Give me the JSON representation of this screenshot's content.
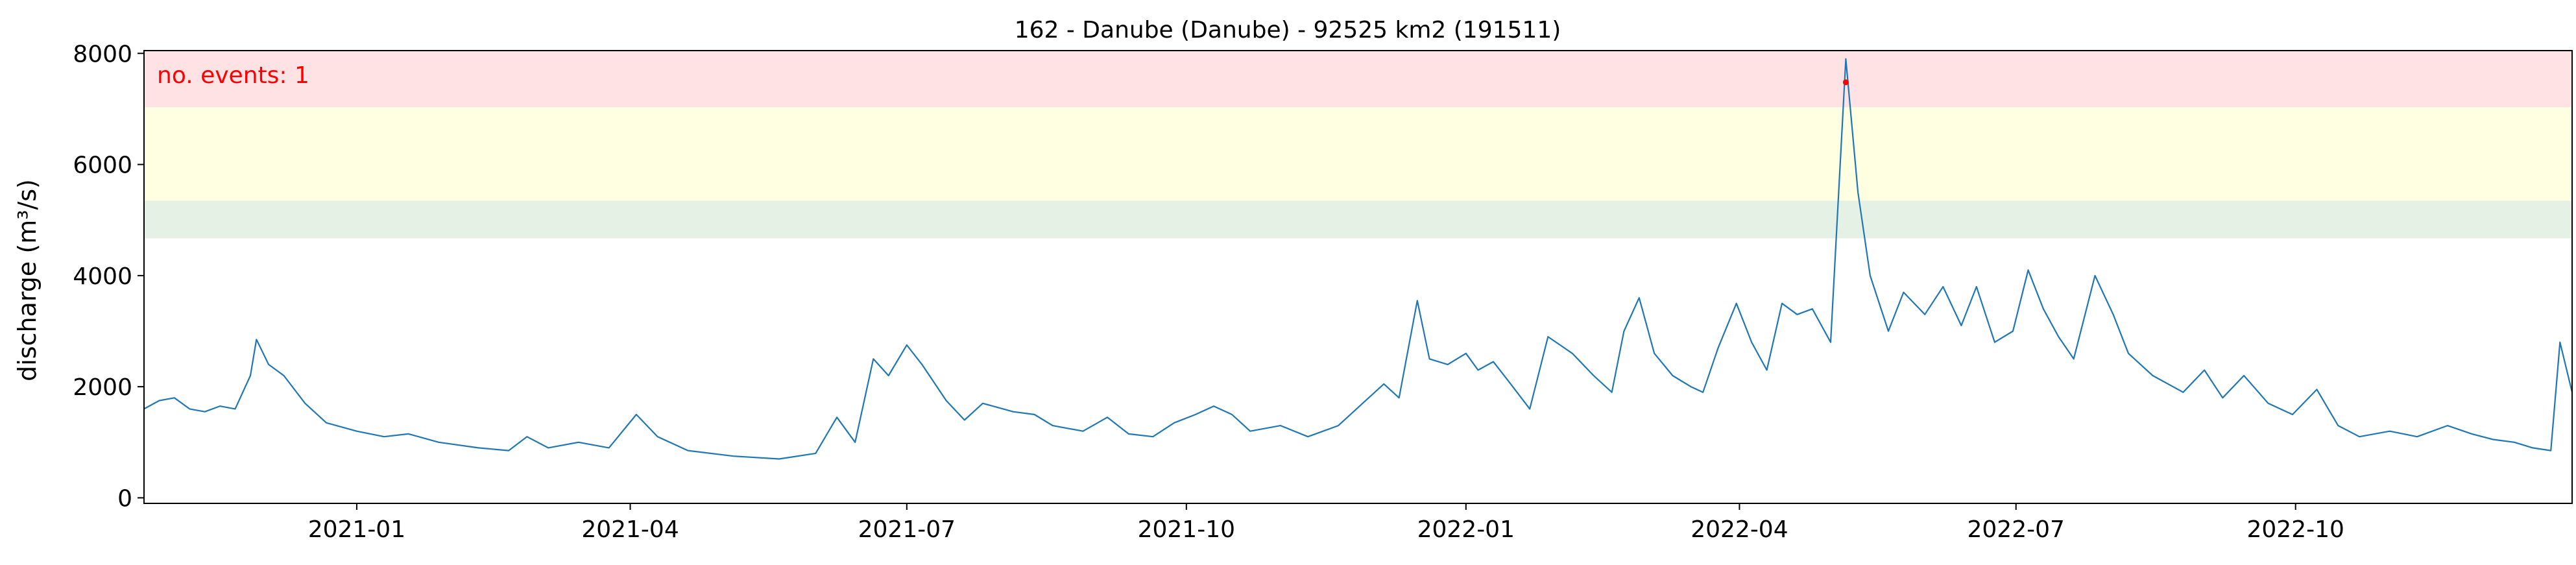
{
  "chart_data": {
    "type": "line",
    "title": "162 - Danube (Danube) - 92525 km2 (191511)",
    "xlabel": "",
    "ylabel": "discharge (m³/s)",
    "annotation": "no. events: 1",
    "x_ticks": [
      "2021-01",
      "2021-04",
      "2021-07",
      "2021-10",
      "2022-01",
      "2022-04",
      "2022-07",
      "2022-10"
    ],
    "y_ticks": [
      0,
      2000,
      4000,
      6000,
      8000
    ],
    "ylim": [
      -100,
      8050
    ],
    "xlim": [
      "2020-10-23",
      "2022-12-31"
    ],
    "grid": false,
    "threshold_bands": [
      {
        "level": "low",
        "from": 4670,
        "to": 5350,
        "color": "#e6f1e6"
      },
      {
        "level": "medium",
        "from": 5350,
        "to": 7030,
        "color": "#ffffe2"
      },
      {
        "level": "high",
        "from": 7030,
        "to": 8050,
        "color": "#ffe2e4"
      }
    ],
    "series": [
      {
        "color": "#1f77b4",
        "points": [
          [
            "2020-10-23",
            1600
          ],
          [
            "2020-10-28",
            1750
          ],
          [
            "2020-11-02",
            1800
          ],
          [
            "2020-11-07",
            1600
          ],
          [
            "2020-11-12",
            1550
          ],
          [
            "2020-11-17",
            1650
          ],
          [
            "2020-11-22",
            1600
          ],
          [
            "2020-11-27",
            2200
          ],
          [
            "2020-11-29",
            2850
          ],
          [
            "2020-12-03",
            2400
          ],
          [
            "2020-12-08",
            2200
          ],
          [
            "2020-12-15",
            1700
          ],
          [
            "2020-12-22",
            1350
          ],
          [
            "2021-01-01",
            1200
          ],
          [
            "2021-01-10",
            1100
          ],
          [
            "2021-01-18",
            1150
          ],
          [
            "2021-01-28",
            1000
          ],
          [
            "2021-02-10",
            900
          ],
          [
            "2021-02-20",
            850
          ],
          [
            "2021-02-26",
            1100
          ],
          [
            "2021-03-05",
            900
          ],
          [
            "2021-03-15",
            1000
          ],
          [
            "2021-03-25",
            900
          ],
          [
            "2021-04-03",
            1500
          ],
          [
            "2021-04-10",
            1100
          ],
          [
            "2021-04-20",
            850
          ],
          [
            "2021-05-05",
            750
          ],
          [
            "2021-05-20",
            700
          ],
          [
            "2021-06-01",
            800
          ],
          [
            "2021-06-08",
            1450
          ],
          [
            "2021-06-14",
            1000
          ],
          [
            "2021-06-20",
            2500
          ],
          [
            "2021-06-25",
            2200
          ],
          [
            "2021-07-01",
            2750
          ],
          [
            "2021-07-06",
            2400
          ],
          [
            "2021-07-14",
            1750
          ],
          [
            "2021-07-20",
            1400
          ],
          [
            "2021-07-26",
            1700
          ],
          [
            "2021-08-05",
            1550
          ],
          [
            "2021-08-12",
            1500
          ],
          [
            "2021-08-18",
            1300
          ],
          [
            "2021-08-23",
            1250
          ],
          [
            "2021-08-28",
            1200
          ],
          [
            "2021-09-05",
            1450
          ],
          [
            "2021-09-12",
            1150
          ],
          [
            "2021-09-20",
            1100
          ],
          [
            "2021-09-27",
            1350
          ],
          [
            "2021-10-04",
            1500
          ],
          [
            "2021-10-10",
            1650
          ],
          [
            "2021-10-16",
            1500
          ],
          [
            "2021-10-22",
            1200
          ],
          [
            "2021-11-01",
            1300
          ],
          [
            "2021-11-10",
            1100
          ],
          [
            "2021-11-20",
            1300
          ],
          [
            "2021-11-28",
            1700
          ],
          [
            "2021-12-05",
            2050
          ],
          [
            "2021-12-10",
            1800
          ],
          [
            "2021-12-16",
            3550
          ],
          [
            "2021-12-20",
            2500
          ],
          [
            "2021-12-26",
            2400
          ],
          [
            "2022-01-01",
            2600
          ],
          [
            "2022-01-05",
            2300
          ],
          [
            "2022-01-10",
            2450
          ],
          [
            "2022-01-15",
            2100
          ],
          [
            "2022-01-22",
            1600
          ],
          [
            "2022-01-28",
            2900
          ],
          [
            "2022-02-05",
            2600
          ],
          [
            "2022-02-12",
            2200
          ],
          [
            "2022-02-18",
            1900
          ],
          [
            "2022-02-22",
            3000
          ],
          [
            "2022-02-27",
            3600
          ],
          [
            "2022-03-04",
            2600
          ],
          [
            "2022-03-10",
            2200
          ],
          [
            "2022-03-16",
            2000
          ],
          [
            "2022-03-20",
            1900
          ],
          [
            "2022-03-25",
            2700
          ],
          [
            "2022-03-31",
            3500
          ],
          [
            "2022-04-05",
            2800
          ],
          [
            "2022-04-10",
            2300
          ],
          [
            "2022-04-15",
            3500
          ],
          [
            "2022-04-20",
            3300
          ],
          [
            "2022-04-25",
            3400
          ],
          [
            "2022-05-01",
            2800
          ],
          [
            "2022-05-06",
            7900
          ],
          [
            "2022-05-10",
            5500
          ],
          [
            "2022-05-14",
            4000
          ],
          [
            "2022-05-20",
            3000
          ],
          [
            "2022-05-25",
            3700
          ],
          [
            "2022-06-01",
            3300
          ],
          [
            "2022-06-07",
            3800
          ],
          [
            "2022-06-13",
            3100
          ],
          [
            "2022-06-18",
            3800
          ],
          [
            "2022-06-24",
            2800
          ],
          [
            "2022-06-30",
            3000
          ],
          [
            "2022-07-05",
            4100
          ],
          [
            "2022-07-10",
            3400
          ],
          [
            "2022-07-15",
            2900
          ],
          [
            "2022-07-20",
            2500
          ],
          [
            "2022-07-27",
            4000
          ],
          [
            "2022-08-02",
            3300
          ],
          [
            "2022-08-07",
            2600
          ],
          [
            "2022-08-15",
            2200
          ],
          [
            "2022-08-25",
            1900
          ],
          [
            "2022-09-01",
            2300
          ],
          [
            "2022-09-07",
            1800
          ],
          [
            "2022-09-14",
            2200
          ],
          [
            "2022-09-22",
            1700
          ],
          [
            "2022-09-30",
            1500
          ],
          [
            "2022-10-08",
            1950
          ],
          [
            "2022-10-15",
            1300
          ],
          [
            "2022-10-22",
            1100
          ],
          [
            "2022-11-01",
            1200
          ],
          [
            "2022-11-10",
            1100
          ],
          [
            "2022-11-20",
            1300
          ],
          [
            "2022-11-28",
            1150
          ],
          [
            "2022-12-05",
            1050
          ],
          [
            "2022-12-12",
            1000
          ],
          [
            "2022-12-18",
            900
          ],
          [
            "2022-12-24",
            850
          ],
          [
            "2022-12-27",
            2800
          ],
          [
            "2022-12-31",
            1900
          ]
        ]
      }
    ],
    "events": [
      {
        "date": "2022-05-06",
        "value": 7480,
        "color": "#ff0000"
      }
    ]
  }
}
